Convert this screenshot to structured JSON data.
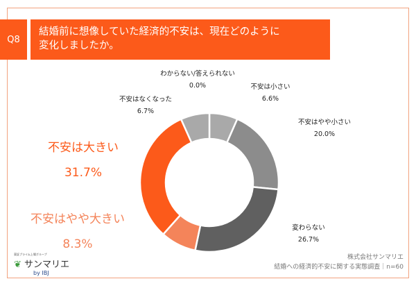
{
  "header": {
    "question_no": "Q8",
    "title": "結婚前に想像していた経済的不安は、現在どのように\n変化しましたか。"
  },
  "chart_data": {
    "type": "pie",
    "title": "結婚前に想像していた経済的不安は、現在どのように変化しましたか。",
    "slices": [
      {
        "label": "わからない/答えられない",
        "value": 0.0,
        "display": "0.0%",
        "color": "#a9a9a9"
      },
      {
        "label": "不安は小さい",
        "value": 6.6,
        "display": "6.6%",
        "color": "#a9a9a9"
      },
      {
        "label": "不安はやや小さい",
        "value": 20.0,
        "display": "20.0%",
        "color": "#8c8c8c"
      },
      {
        "label": "変わらない",
        "value": 26.7,
        "display": "26.7%",
        "color": "#606060"
      },
      {
        "label": "不安はやや大きい",
        "value": 8.3,
        "display": "8.3%",
        "color": "#f4845a"
      },
      {
        "label": "不安は大きい",
        "value": 31.7,
        "display": "31.7%",
        "color": "#fc5a1a"
      },
      {
        "label": "不安はなくなった",
        "value": 6.7,
        "display": "6.7%",
        "color": "#a9a9a9"
      }
    ],
    "donut": true
  },
  "footer": {
    "company": "株式会社サンマリエ",
    "survey": "結婚への経済的不安に関する実態調査｜n=60"
  },
  "logo": {
    "sub": "東証プライム上場グループ",
    "name": "サンマリエ",
    "by": "by IBJ"
  }
}
